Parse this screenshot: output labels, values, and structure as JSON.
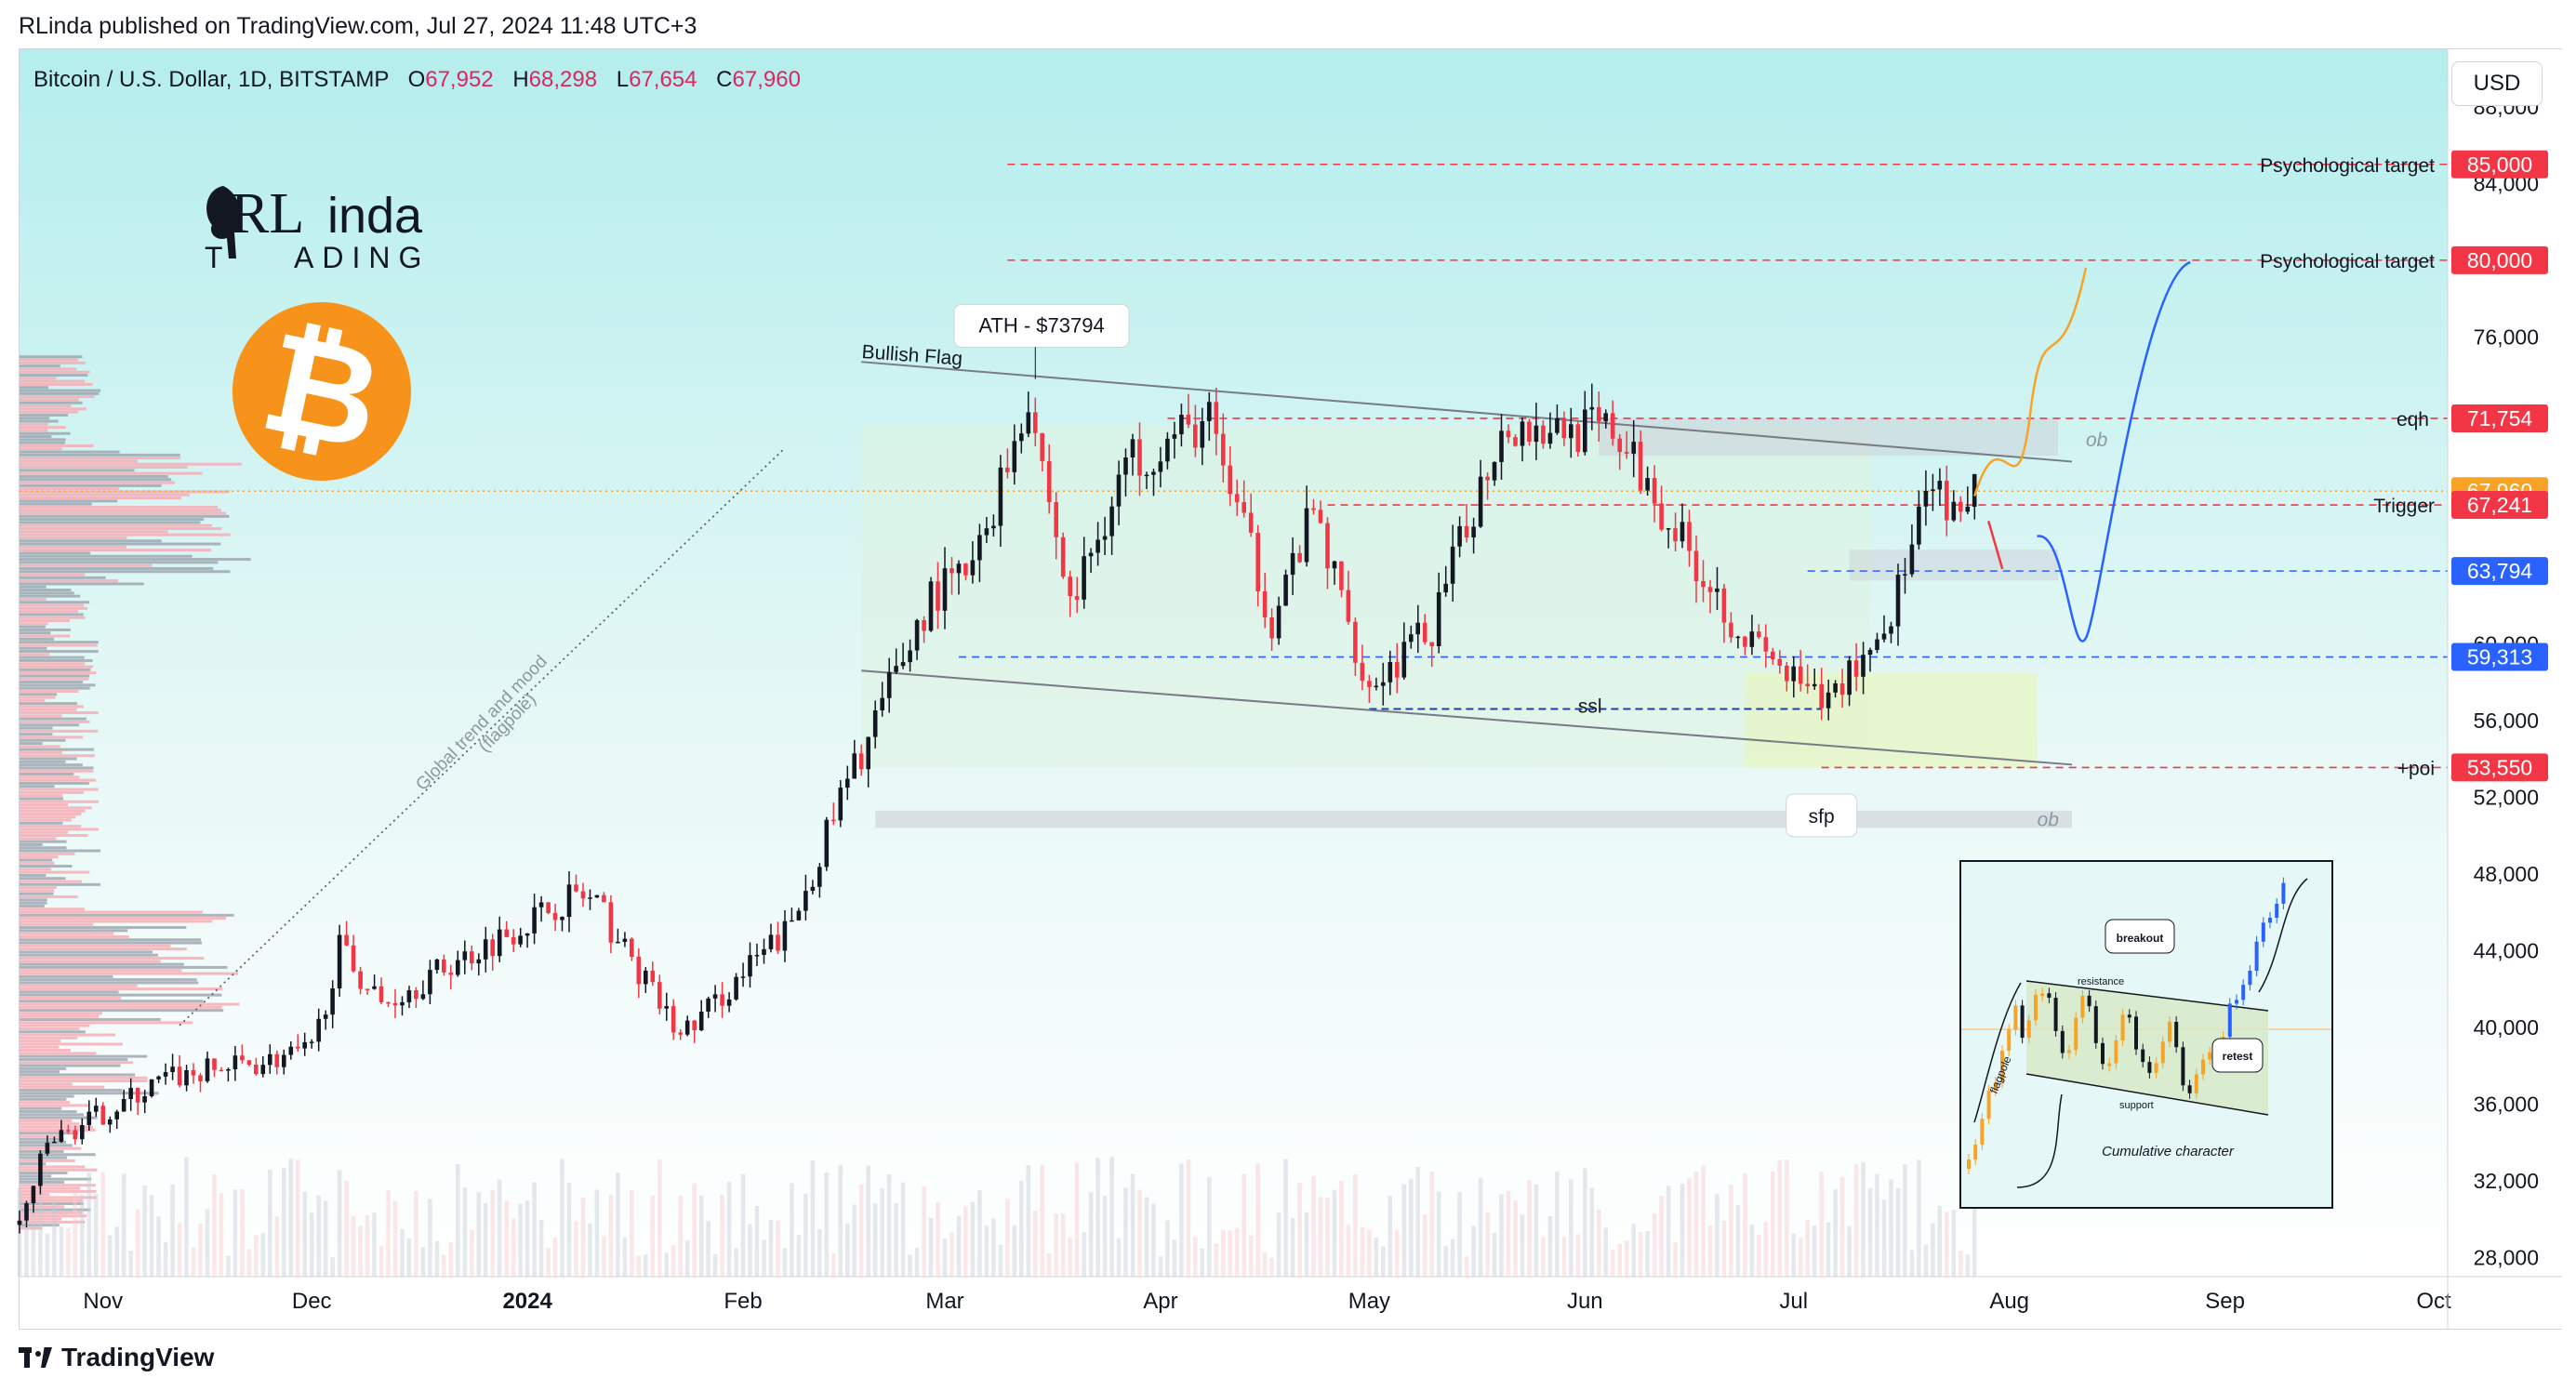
{
  "header": {
    "publish_info": "RLinda published on TradingView.com, Jul 27, 2024 11:48 UTC+3"
  },
  "legend": {
    "symbol": "Bitcoin / U.S. Dollar, 1D, BITSTAMP",
    "open_label": "O",
    "open": "67,952",
    "high_label": "H",
    "high": "68,298",
    "low_label": "L",
    "low": "67,654",
    "close_label": "C",
    "close": "67,960"
  },
  "currency_button": "USD",
  "logo": {
    "line1_a": "RL",
    "line1_b": "inda",
    "line2_a": "T",
    "line2_b": "ADING"
  },
  "btc_symbol": "₿",
  "footer": {
    "brand": "TradingView"
  },
  "colors": {
    "bg_top": "#b4eeed",
    "bg_bottom": "#ffffff",
    "bull": "#131722",
    "bear": "#f23645",
    "red_level": "#f23645",
    "blue_level": "#2962ff",
    "orange_level": "#f7a325",
    "ob_zone": "#c9ccd4",
    "poi_zone": "#e6f6c7"
  },
  "annotations": {
    "ath": "ATH - $73794",
    "bullish_flag": "Bullish Flag",
    "flagpole": "Global trend and mood",
    "flagpole2": "(flagpole)",
    "ssl": "ssl",
    "sfp": "sfp",
    "ob1": "ob",
    "ob2": "ob",
    "psych_85": "Psychological target",
    "psych_80": "Psychological target",
    "eqh": "eqh",
    "trigger": "Trigger",
    "poi": "+poi"
  },
  "price_badges": [
    {
      "label": "85,000",
      "price": 85000,
      "color": "#f23645"
    },
    {
      "label": "80,000",
      "price": 80000,
      "color": "#f23645"
    },
    {
      "label": "71,754",
      "price": 71754,
      "color": "#f23645"
    },
    {
      "label": "67,960",
      "price": 67960,
      "color": "#f7a325"
    },
    {
      "label": "67,241",
      "price": 67241,
      "color": "#f23645"
    },
    {
      "label": "63,794",
      "price": 63794,
      "color": "#2962ff"
    },
    {
      "label": "59,313",
      "price": 59313,
      "color": "#2962ff"
    },
    {
      "label": "53,550",
      "price": 53550,
      "color": "#f23645"
    }
  ],
  "inset": {
    "breakout": "breakout",
    "resistance": "resistance",
    "retest": "retest",
    "flagpole": "flagpole",
    "support": "support",
    "caption": "Cumulative character"
  },
  "chart_data": {
    "type": "candlestick",
    "title": "Bitcoin / U.S. Dollar, 1D, BITSTAMP",
    "ylim": [
      27000,
      91000
    ],
    "y_ticks": [
      "28,000",
      "32,000",
      "36,000",
      "40,000",
      "44,000",
      "48,000",
      "52,000",
      "56,000",
      "60,000",
      "64,000",
      "68,000",
      "72,000",
      "76,000",
      "80,000",
      "84,000",
      "88,000"
    ],
    "y_tick_values": [
      28000,
      32000,
      36000,
      40000,
      44000,
      48000,
      52000,
      56000,
      60000,
      64000,
      68000,
      72000,
      76000,
      80000,
      84000,
      88000
    ],
    "x_ticks": [
      {
        "label": "Nov",
        "date": "2023-11-01",
        "bold": false
      },
      {
        "label": "Dec",
        "date": "2023-12-01",
        "bold": false
      },
      {
        "label": "2024",
        "date": "2024-01-01",
        "bold": true
      },
      {
        "label": "Feb",
        "date": "2024-02-01",
        "bold": false
      },
      {
        "label": "Mar",
        "date": "2024-03-01",
        "bold": false
      },
      {
        "label": "Apr",
        "date": "2024-04-01",
        "bold": false
      },
      {
        "label": "May",
        "date": "2024-05-01",
        "bold": false
      },
      {
        "label": "Jun",
        "date": "2024-06-01",
        "bold": false
      },
      {
        "label": "Jul",
        "date": "2024-07-01",
        "bold": false
      },
      {
        "label": "Aug",
        "date": "2024-08-01",
        "bold": false
      },
      {
        "label": "Sep",
        "date": "2024-09-01",
        "bold": false
      },
      {
        "label": "Oct",
        "date": "2024-10-01",
        "bold": false
      }
    ],
    "x_range": [
      "2023-10-20",
      "2024-10-03"
    ],
    "ohlc_key_closes": [
      {
        "date": "2023-10-20",
        "close": 29700
      },
      {
        "date": "2023-10-24",
        "close": 33900
      },
      {
        "date": "2023-11-10",
        "close": 37300
      },
      {
        "date": "2023-12-01",
        "close": 38700
      },
      {
        "date": "2023-12-05",
        "close": 44100
      },
      {
        "date": "2023-12-11",
        "close": 41200
      },
      {
        "date": "2024-01-08",
        "close": 47000
      },
      {
        "date": "2024-01-11",
        "close": 46300
      },
      {
        "date": "2024-01-23",
        "close": 39500
      },
      {
        "date": "2024-02-08",
        "close": 45300
      },
      {
        "date": "2024-02-15",
        "close": 51900
      },
      {
        "date": "2024-02-28",
        "close": 62500
      },
      {
        "date": "2024-03-05",
        "close": 63800
      },
      {
        "date": "2024-03-13",
        "close": 73100
      },
      {
        "date": "2024-03-19",
        "close": 61900
      },
      {
        "date": "2024-03-27",
        "close": 69500
      },
      {
        "date": "2024-04-08",
        "close": 71600
      },
      {
        "date": "2024-04-17",
        "close": 61300
      },
      {
        "date": "2024-04-23",
        "close": 66800
      },
      {
        "date": "2024-05-01",
        "close": 57800
      },
      {
        "date": "2024-05-10",
        "close": 60800
      },
      {
        "date": "2024-05-20",
        "close": 71400
      },
      {
        "date": "2024-06-05",
        "close": 71100
      },
      {
        "date": "2024-06-24",
        "close": 60300
      },
      {
        "date": "2024-07-05",
        "close": 56700
      },
      {
        "date": "2024-07-14",
        "close": 60800
      },
      {
        "date": "2024-07-21",
        "close": 68100
      },
      {
        "date": "2024-07-25",
        "close": 65800
      },
      {
        "date": "2024-07-27",
        "close": 67960
      }
    ],
    "ath": 73794
  }
}
